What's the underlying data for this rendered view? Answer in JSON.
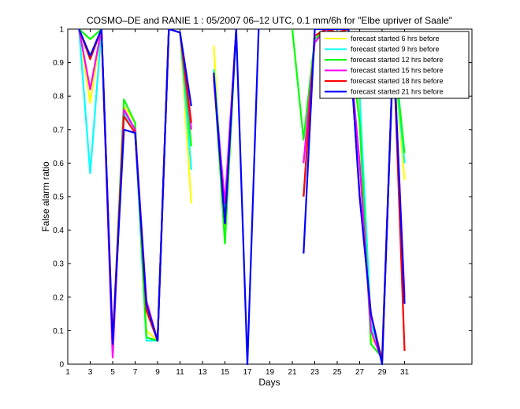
{
  "chart_data": {
    "type": "line",
    "title": "COSMO–DE and RANIE 1 : 05/2007 06–12 UTC, 0.1 mm/6h for \"Elbe upriver of Saale\"",
    "xlabel": "Days",
    "ylabel": "False alarm ratio",
    "xlim": [
      1,
      37
    ],
    "ylim": [
      0,
      1
    ],
    "xticks": [
      1,
      3,
      5,
      7,
      9,
      11,
      13,
      15,
      17,
      19,
      21,
      23,
      25,
      27,
      29,
      31
    ],
    "yticks": [
      0,
      0.1,
      0.2,
      0.3,
      0.4,
      0.5,
      0.6,
      0.7,
      0.8,
      0.9,
      1
    ],
    "ytick_labels": [
      "0",
      "0.1",
      "0.2",
      "0.3",
      "0.4",
      "0.5",
      "0.6",
      "0.7",
      "0.8",
      "0.9",
      "1"
    ],
    "legend_position": "top-right",
    "grid": false,
    "x": [
      1,
      2,
      3,
      4,
      5,
      6,
      7,
      8,
      9,
      10,
      11,
      12,
      13,
      14,
      15,
      16,
      17,
      18,
      19,
      20,
      21,
      22,
      23,
      24,
      25,
      26,
      27,
      28,
      29,
      30,
      31
    ],
    "series": [
      {
        "name": "forecast started 6 hrs before",
        "color": "#ffff00",
        "values": [
          null,
          1.0,
          0.78,
          1.0,
          0.05,
          0.77,
          0.72,
          0.1,
          0.07,
          1.0,
          0.99,
          0.48,
          null,
          0.95,
          0.38,
          1.0,
          null,
          null,
          null,
          null,
          null,
          null,
          0.98,
          1.0,
          0.99,
          1.0,
          0.75,
          0.08,
          0.03,
          0.92,
          0.55
        ]
      },
      {
        "name": "forecast started 9 hrs before",
        "color": "#00ffff",
        "values": [
          null,
          1.0,
          0.57,
          1.0,
          0.04,
          0.75,
          0.7,
          0.07,
          0.07,
          1.0,
          0.99,
          0.58,
          null,
          0.88,
          0.46,
          1.0,
          null,
          null,
          null,
          null,
          null,
          0.5,
          0.97,
          1.0,
          0.99,
          1.0,
          0.8,
          0.12,
          0.02,
          0.93,
          0.6
        ]
      },
      {
        "name": "forecast started 12 hrs before",
        "color": "#00ff00",
        "values": [
          null,
          1.0,
          0.97,
          1.0,
          0.05,
          0.79,
          0.72,
          0.08,
          0.07,
          1.0,
          0.99,
          0.65,
          null,
          0.87,
          0.36,
          1.0,
          null,
          null,
          null,
          null,
          1.0,
          0.67,
          0.97,
          1.0,
          0.99,
          1.0,
          0.72,
          0.06,
          0.02,
          0.95,
          0.63
        ]
      },
      {
        "name": "forecast started 15 hrs before",
        "color": "#ff00ff",
        "values": [
          null,
          1.0,
          0.82,
          1.0,
          0.02,
          0.76,
          0.7,
          0.19,
          0.07,
          1.0,
          0.99,
          0.7,
          null,
          0.85,
          0.48,
          1.0,
          null,
          null,
          null,
          null,
          null,
          0.6,
          0.96,
          1.0,
          0.98,
          0.97,
          0.6,
          0.1,
          0.01,
          0.95,
          0.2
        ]
      },
      {
        "name": "forecast started 18 hrs before",
        "color": "#ff0000",
        "values": [
          null,
          1.0,
          0.91,
          1.0,
          0.07,
          0.74,
          0.69,
          0.16,
          0.07,
          1.0,
          0.99,
          0.72,
          null,
          0.86,
          0.42,
          1.0,
          null,
          null,
          null,
          null,
          null,
          0.5,
          0.98,
          1.0,
          0.99,
          1.0,
          0.5,
          0.15,
          0.01,
          0.95,
          0.04
        ]
      },
      {
        "name": "forecast started 21 hrs before",
        "color": "#0000ff",
        "values": [
          null,
          1.0,
          0.92,
          1.0,
          0.06,
          0.7,
          0.69,
          0.18,
          0.07,
          1.0,
          0.99,
          0.77,
          null,
          0.87,
          0.42,
          1.0,
          0.0,
          1.0,
          null,
          null,
          null,
          0.33,
          1.0,
          1.0,
          1.0,
          1.0,
          0.5,
          0.15,
          0.0,
          0.95,
          0.18
        ]
      }
    ]
  }
}
